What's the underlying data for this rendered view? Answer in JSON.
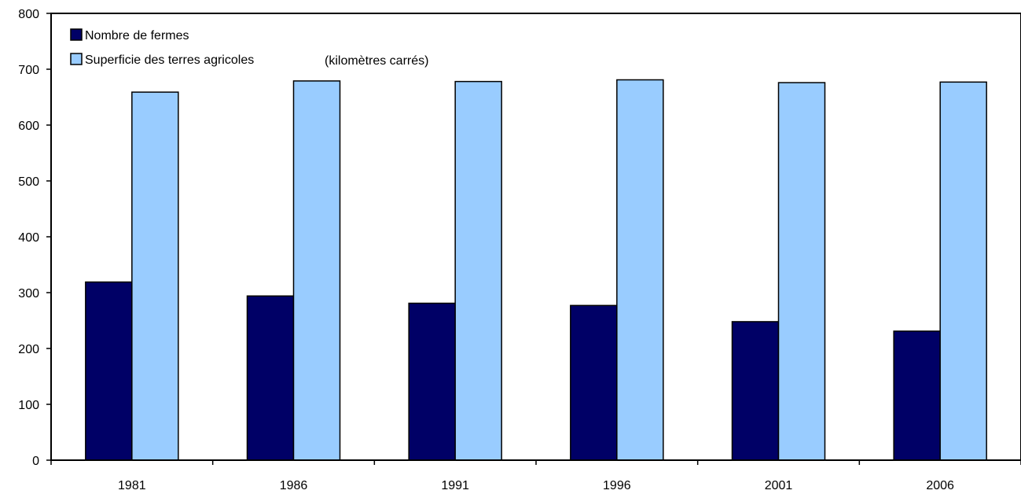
{
  "chart_data": {
    "type": "bar",
    "categories": [
      "1981",
      "1986",
      "1991",
      "1996",
      "2001",
      "2006"
    ],
    "series": [
      {
        "name": "Nombre de fermes",
        "color": "#000066",
        "values": [
          319,
          294,
          281,
          277,
          248,
          231
        ]
      },
      {
        "name": "Superficie des terres agricoles",
        "color": "#99ccff",
        "values": [
          659,
          679,
          678,
          681,
          676,
          677
        ]
      }
    ],
    "legend_note": "(kilomètres carrés)",
    "yticks": [
      "0",
      "100",
      "200",
      "300",
      "400",
      "500",
      "600",
      "700",
      "800"
    ],
    "ylim": [
      0,
      800
    ],
    "grid": false,
    "legend_position": "top-left",
    "title": "",
    "xlabel": "",
    "ylabel": ""
  }
}
